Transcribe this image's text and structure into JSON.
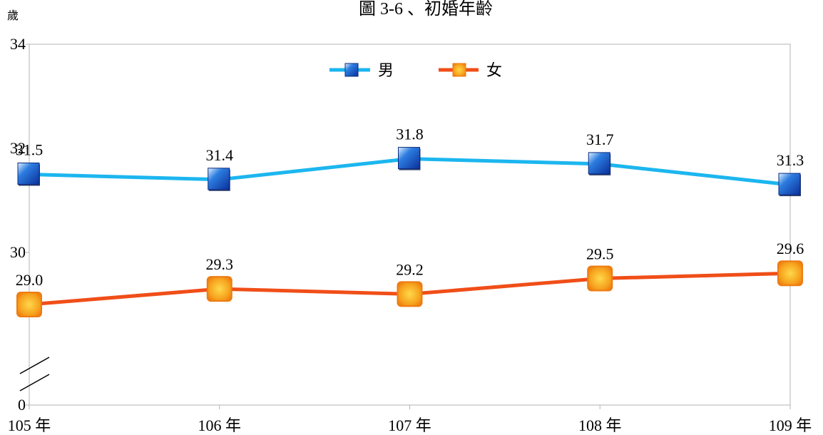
{
  "chart_data": {
    "type": "line",
    "title": "圖 3-6 、初婚年齡",
    "ylabel": "歲",
    "xlabel": "",
    "categories": [
      "105 年",
      "106 年",
      "107 年",
      "108 年",
      "109 年"
    ],
    "yticks": [
      0,
      30,
      32,
      34
    ],
    "ylim": [
      28,
      34
    ],
    "axis_break": true,
    "grid": false,
    "legend_position": "top-center",
    "series": [
      {
        "name": "男",
        "values": [
          31.5,
          31.4,
          31.8,
          31.7,
          31.3
        ],
        "labels": [
          "31.5",
          "31.4",
          "31.8",
          "31.7",
          "31.3"
        ],
        "color": "#1CB6EF",
        "marker": "square-blue"
      },
      {
        "name": "女",
        "values": [
          29.0,
          29.3,
          29.2,
          29.5,
          29.6
        ],
        "labels": [
          "29.0",
          "29.3",
          "29.2",
          "29.5",
          "29.6"
        ],
        "color": "#F04E18",
        "marker": "square-orange"
      }
    ]
  }
}
